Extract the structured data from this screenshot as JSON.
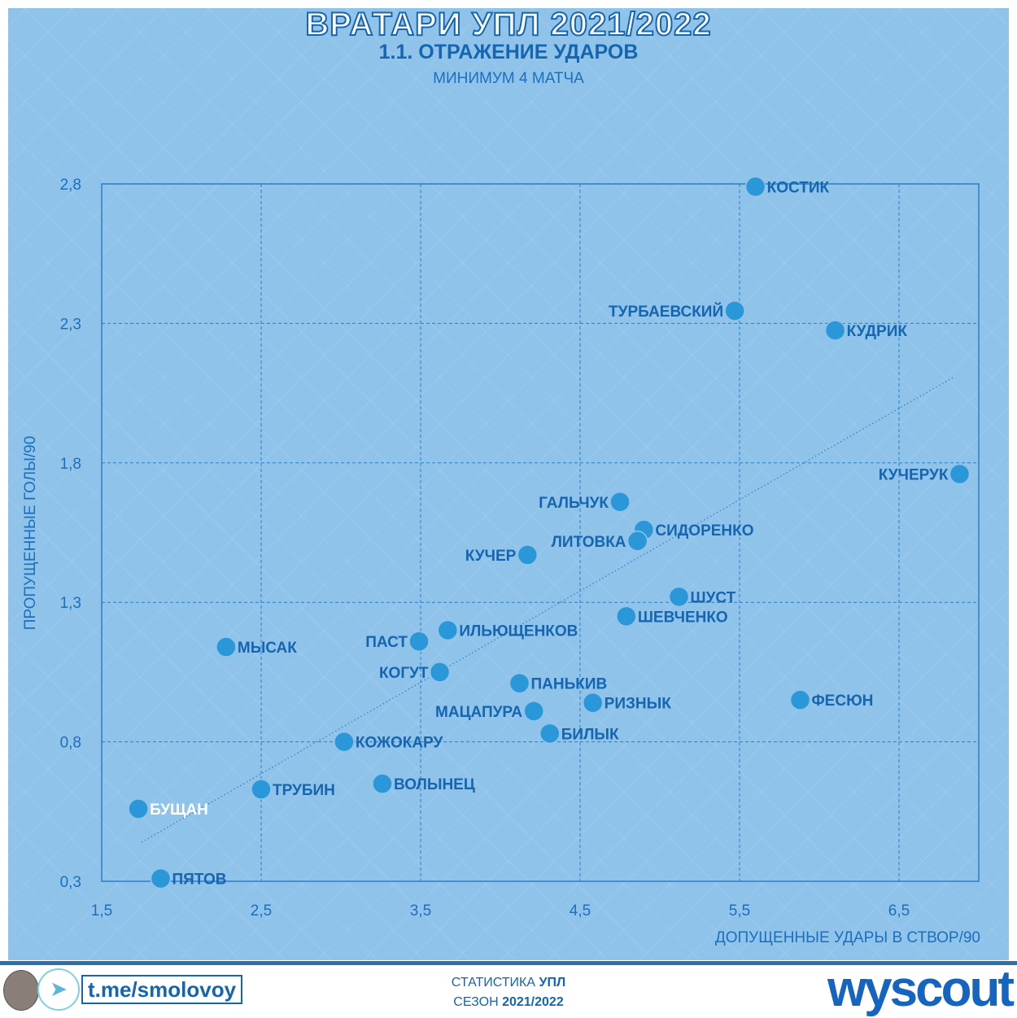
{
  "header": {
    "title": "ВРАТАРИ УПЛ 2021/2022",
    "subtitle": "1.1. ОТРАЖЕНИЕ УДАРОВ",
    "note": "МИНИМУМ 4 МАТЧА"
  },
  "chart_data": {
    "type": "scatter",
    "title": "ВРАТАРИ УПЛ 2021/2022 — 1.1. ОТРАЖЕНИЕ УДАРОВ",
    "xlabel": "ДОПУЩЕННЫЕ УДАРЫ В СТВОР/90",
    "ylabel": "ПРОПУЩЕННЫЕ ГОЛЫ/90",
    "xlim": [
      1.5,
      7.0
    ],
    "ylim": [
      0.3,
      2.8
    ],
    "xticks": [
      "1,5",
      "2,5",
      "3,5",
      "4,5",
      "5,5",
      "6,5"
    ],
    "xtick_values": [
      1.5,
      2.5,
      3.5,
      4.5,
      5.5,
      6.5
    ],
    "yticks": [
      "0,3",
      "0,8",
      "1,3",
      "1,8",
      "2,3",
      "2,8"
    ],
    "ytick_values": [
      0.3,
      0.8,
      1.3,
      1.8,
      2.3,
      2.8
    ],
    "grid": true,
    "trendline": {
      "x": [
        1.75,
        6.85
      ],
      "y": [
        0.44,
        2.11
      ]
    },
    "points": [
      {
        "name": "КОСТИК",
        "x": 5.6,
        "y": 2.79
      },
      {
        "name": "ТУРБАЕВСКИЙ",
        "x": 5.47,
        "y": 2.345
      },
      {
        "name": "КУДРИК",
        "x": 6.1,
        "y": 2.275
      },
      {
        "name": "КУЧЕРУК",
        "x": 6.88,
        "y": 1.76
      },
      {
        "name": "ГАЛЬЧУК",
        "x": 4.75,
        "y": 1.66
      },
      {
        "name": "СИДОРЕНКО",
        "x": 4.9,
        "y": 1.56
      },
      {
        "name": "ЛИТОВКА",
        "x": 4.86,
        "y": 1.52
      },
      {
        "name": "КУЧЕР",
        "x": 4.17,
        "y": 1.47
      },
      {
        "name": "ШУСТ",
        "x": 5.12,
        "y": 1.32
      },
      {
        "name": "ШЕВЧЕНКО",
        "x": 4.79,
        "y": 1.25
      },
      {
        "name": "ИЛЬЮЩЕНКОВ",
        "x": 3.67,
        "y": 1.2
      },
      {
        "name": "ПАСТ",
        "x": 3.49,
        "y": 1.16
      },
      {
        "name": "МЫСАК",
        "x": 2.28,
        "y": 1.14
      },
      {
        "name": "КОГУТ",
        "x": 3.62,
        "y": 1.05
      },
      {
        "name": "ПАНЬКИВ",
        "x": 4.12,
        "y": 1.01
      },
      {
        "name": "РИЗНЫК",
        "x": 4.58,
        "y": 0.94
      },
      {
        "name": "ФЕСЮН",
        "x": 5.88,
        "y": 0.95
      },
      {
        "name": "МАЦАПУРА",
        "x": 4.21,
        "y": 0.91
      },
      {
        "name": "БИЛЫК",
        "x": 4.31,
        "y": 0.83
      },
      {
        "name": "КОЖОКАРУ",
        "x": 3.02,
        "y": 0.8
      },
      {
        "name": "ВОЛЫНЕЦ",
        "x": 3.26,
        "y": 0.65
      },
      {
        "name": "ТРУБИН",
        "x": 2.5,
        "y": 0.63
      },
      {
        "name": "БУЩАН",
        "x": 1.73,
        "y": 0.56
      },
      {
        "name": "ПЯТОВ",
        "x": 1.87,
        "y": 0.31
      }
    ]
  },
  "footer": {
    "handle": "t.me/smolovoy",
    "stat_prefix": "СТАТИСТИКА",
    "stat_league": "УПЛ",
    "season_prefix": "СЕЗОН",
    "season": "2021/2022",
    "brand": "wyscout"
  },
  "colors": {
    "point": "#2a98d8",
    "text": "#1565b0",
    "background": "#8fc3ea",
    "grid": "#2a7fc8"
  }
}
